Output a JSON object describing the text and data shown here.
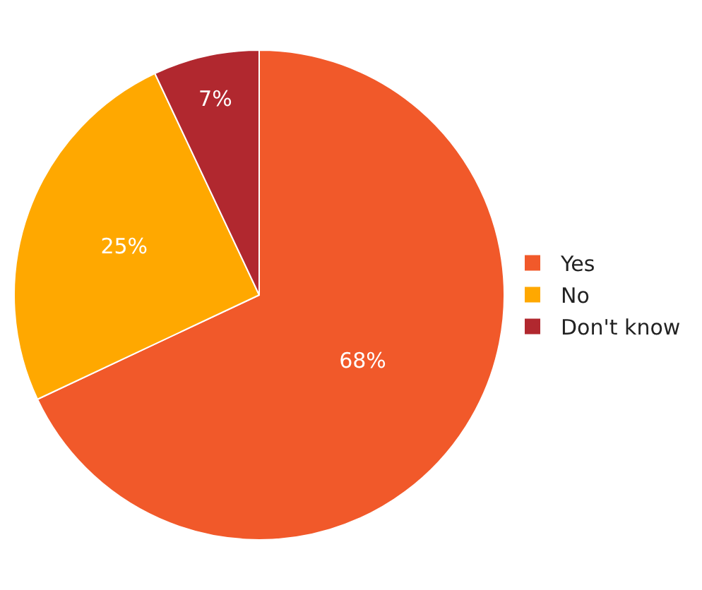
{
  "chart_data": {
    "type": "pie",
    "categories": [
      "Yes",
      "No",
      "Don't know"
    ],
    "values": [
      68,
      25,
      7
    ],
    "colors": [
      "#f1592a",
      "#ffa800",
      "#b1282f"
    ],
    "value_labels": [
      "68%",
      "25%",
      "7%"
    ],
    "legend": "right"
  }
}
